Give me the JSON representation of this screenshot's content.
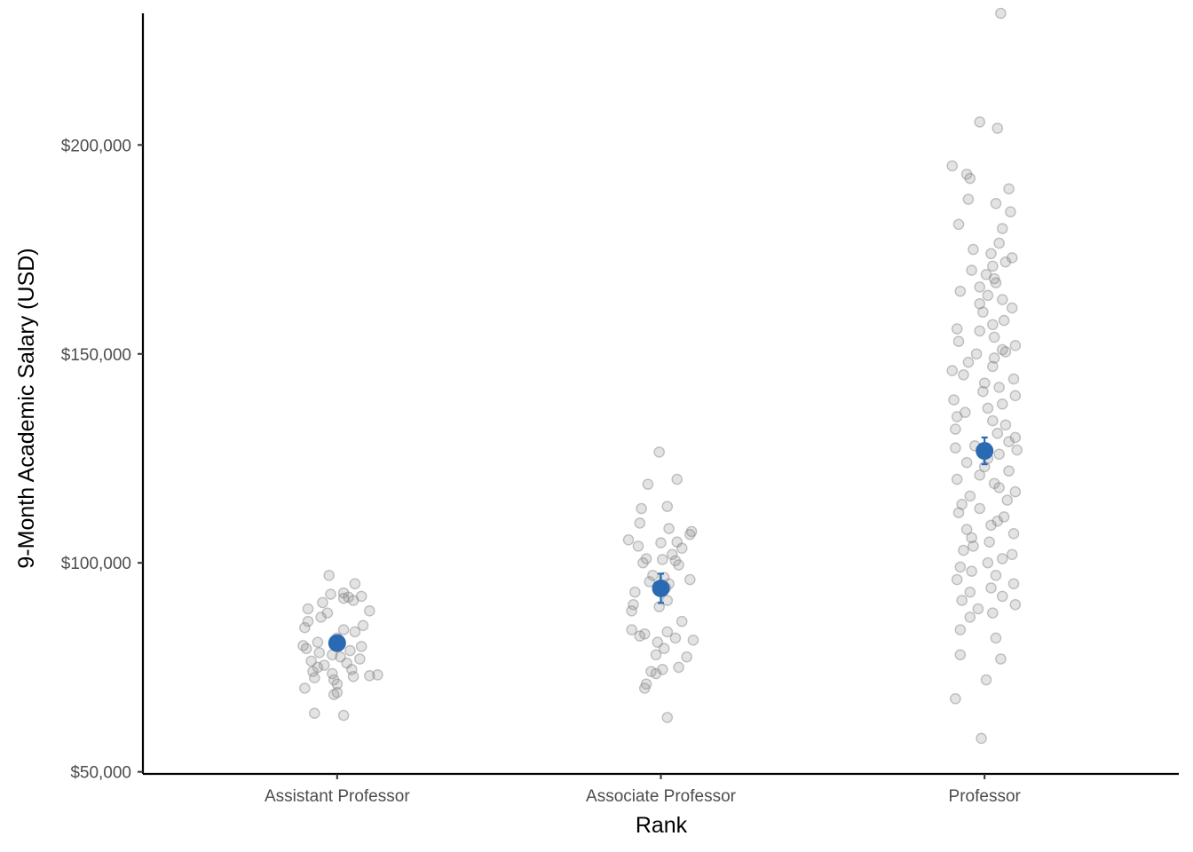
{
  "chart_data": {
    "type": "scatter",
    "xlabel": "Rank",
    "ylabel": "9-Month Academic Salary (USD)",
    "categories": [
      "Assistant Professor",
      "Associate Professor",
      "Professor"
    ],
    "y_ticks": [
      50000,
      100000,
      150000,
      200000
    ],
    "y_tick_labels": [
      "$50,000",
      "$100,000",
      "$150,000",
      "$200,000"
    ],
    "ylim": [
      49500,
      231500
    ],
    "grid": false,
    "colors": {
      "points": "#808080",
      "summary": "#2a6ab2",
      "axis": "#000000"
    },
    "summary": [
      {
        "category": "Assistant Professor",
        "mean": 80800,
        "se_low": 79100,
        "se_high": 82500
      },
      {
        "category": "Associate Professor",
        "mean": 93900,
        "se_low": 90400,
        "se_high": 97400
      },
      {
        "category": "Professor",
        "mean": 126800,
        "se_low": 123600,
        "se_high": 130000
      }
    ],
    "points": [
      {
        "category": "Assistant Professor",
        "values": [
          97000,
          95000,
          92500,
          92000,
          91800,
          91500,
          91000,
          90500,
          89000,
          88500,
          88000,
          87000,
          86000,
          85000,
          84500,
          84000,
          83500,
          82000,
          81000,
          80000,
          79500,
          79000,
          78500,
          78000,
          77500,
          77000,
          76500,
          76000,
          75500,
          75000,
          74500,
          74000,
          73500,
          73000,
          72800,
          72500,
          72000,
          71000,
          70000,
          69000,
          68500,
          64000,
          63500,
          92800,
          80200,
          73200
        ],
        "jitter": [
          -0.025,
          0.055,
          -0.02,
          0.075,
          0.035,
          0.02,
          0.05,
          -0.045,
          -0.09,
          0.1,
          -0.03,
          -0.05,
          -0.09,
          0.08,
          -0.1,
          0.02,
          0.055,
          0.0,
          -0.06,
          0.075,
          -0.095,
          0.04,
          -0.055,
          -0.015,
          0.01,
          0.07,
          -0.08,
          0.03,
          -0.04,
          -0.06,
          0.045,
          -0.075,
          -0.015,
          0.1,
          0.05,
          -0.07,
          -0.01,
          0.0,
          -0.1,
          0.0,
          -0.01,
          -0.07,
          0.02,
          0.02,
          -0.105,
          0.125
        ]
      },
      {
        "category": "Associate Professor",
        "values": [
          126500,
          120000,
          118800,
          113500,
          113000,
          109500,
          108200,
          107500,
          106800,
          105500,
          105000,
          104800,
          104000,
          103500,
          102000,
          101000,
          100500,
          100000,
          99500,
          97000,
          96000,
          95500,
          95000,
          94000,
          93000,
          91000,
          90000,
          89500,
          88500,
          86000,
          84000,
          83500,
          83000,
          82500,
          82000,
          81500,
          81000,
          79500,
          78000,
          77500,
          75000,
          74500,
          74000,
          73500,
          71000,
          70000,
          63000,
          100800,
          96500
        ],
        "jitter": [
          -0.005,
          0.05,
          -0.04,
          0.02,
          -0.06,
          -0.065,
          0.025,
          0.095,
          0.09,
          -0.1,
          0.05,
          0.0,
          -0.07,
          0.065,
          0.035,
          -0.045,
          0.045,
          -0.055,
          0.055,
          -0.025,
          0.09,
          -0.035,
          0.025,
          0.015,
          -0.08,
          0.02,
          -0.085,
          -0.005,
          -0.09,
          0.065,
          -0.09,
          0.02,
          -0.05,
          -0.065,
          0.045,
          0.1,
          -0.01,
          0.01,
          -0.015,
          0.08,
          0.055,
          0.005,
          -0.03,
          -0.015,
          -0.045,
          -0.05,
          0.02,
          0.005,
          0.01
        ]
      },
      {
        "category": "Professor",
        "values": [
          231500,
          205500,
          204000,
          195000,
          193000,
          192000,
          189500,
          187000,
          186000,
          184000,
          181000,
          180000,
          176500,
          175000,
          174000,
          173000,
          172000,
          171000,
          170000,
          169000,
          168000,
          167000,
          166000,
          165000,
          164000,
          163000,
          162000,
          161000,
          160000,
          158000,
          157000,
          156000,
          155500,
          154000,
          153000,
          152000,
          151000,
          150500,
          150000,
          149000,
          148000,
          147000,
          146000,
          145000,
          144000,
          143000,
          142000,
          141000,
          140000,
          139000,
          138000,
          137000,
          136000,
          135000,
          134000,
          133000,
          132000,
          131000,
          130000,
          129000,
          128000,
          127500,
          127000,
          126000,
          125000,
          124000,
          123000,
          122000,
          121000,
          120000,
          119000,
          118000,
          117000,
          116000,
          115000,
          114000,
          113000,
          112000,
          111000,
          110000,
          109000,
          108000,
          107000,
          106000,
          105000,
          104000,
          103000,
          102000,
          101000,
          100000,
          99000,
          98000,
          97000,
          96000,
          95000,
          94000,
          93000,
          92000,
          91000,
          90000,
          89000,
          88000,
          87000,
          84000,
          82000,
          78000,
          77000,
          72000,
          67500,
          58000
        ],
        "jitter": [
          0.05,
          -0.015,
          0.04,
          -0.1,
          -0.055,
          -0.045,
          0.075,
          -0.05,
          0.035,
          0.08,
          -0.08,
          0.055,
          0.045,
          -0.035,
          0.02,
          0.085,
          0.065,
          0.025,
          -0.04,
          0.005,
          0.03,
          0.035,
          -0.015,
          -0.075,
          0.01,
          0.055,
          -0.015,
          0.085,
          -0.005,
          0.06,
          0.025,
          -0.085,
          -0.015,
          0.03,
          -0.08,
          0.095,
          0.055,
          0.065,
          -0.025,
          0.03,
          -0.05,
          0.025,
          -0.1,
          -0.065,
          0.09,
          0.0,
          0.045,
          -0.005,
          0.095,
          -0.095,
          0.055,
          0.01,
          -0.06,
          -0.085,
          0.025,
          0.065,
          -0.09,
          0.04,
          0.095,
          0.075,
          -0.03,
          -0.09,
          0.1,
          0.045,
          0.01,
          -0.055,
          0.0,
          0.075,
          -0.015,
          -0.085,
          0.03,
          0.045,
          0.095,
          -0.045,
          0.07,
          -0.07,
          -0.015,
          -0.08,
          0.06,
          0.04,
          0.02,
          -0.055,
          0.09,
          -0.04,
          0.015,
          -0.035,
          -0.065,
          0.085,
          0.055,
          0.01,
          -0.075,
          -0.04,
          0.035,
          -0.085,
          0.09,
          0.02,
          -0.045,
          0.055,
          -0.07,
          0.095,
          -0.02,
          0.025,
          -0.045,
          -0.075,
          0.035,
          -0.075,
          0.05,
          0.005,
          -0.09,
          -0.01
        ]
      }
    ]
  }
}
